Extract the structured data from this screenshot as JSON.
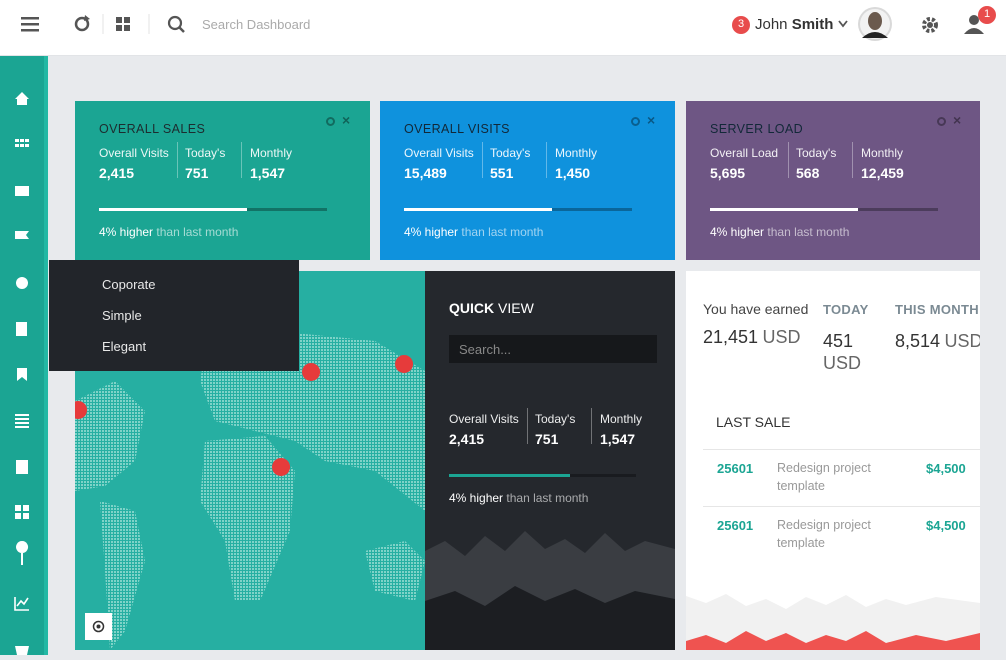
{
  "topbar": {
    "search_placeholder": "Search Dashboard",
    "messages_badge": 3,
    "user_first_name": "John",
    "user_last_name": "Smith",
    "alerts_badge": 1
  },
  "stat_cards": [
    {
      "title": "OVERALL SALES",
      "stats": [
        {
          "label": "Overall Visits",
          "value": "2,415"
        },
        {
          "label": "Today's",
          "value": "751"
        },
        {
          "label": "Monthly",
          "value": "1,547"
        }
      ],
      "progress_label": "4% higher",
      "progress_note": "than last month"
    },
    {
      "title": "OVERALL VISITS",
      "stats": [
        {
          "label": "Overall Visits",
          "value": "15,489"
        },
        {
          "label": "Today's",
          "value": "551"
        },
        {
          "label": "Monthly",
          "value": "1,450"
        }
      ],
      "progress_label": "4% higher",
      "progress_note": "than last month"
    },
    {
      "title": "SERVER LOAD",
      "stats": [
        {
          "label": "Overall Load",
          "value": "5,695"
        },
        {
          "label": "Today's",
          "value": "568"
        },
        {
          "label": "Monthly",
          "value": "12,459"
        }
      ],
      "progress_label": "4% higher",
      "progress_note": "than last month"
    }
  ],
  "menu": {
    "items": [
      "Coporate",
      "Simple",
      "Elegant"
    ]
  },
  "quick_view": {
    "title_bold": "QUICK",
    "title_rest": "VIEW",
    "search_placeholder": "Search...",
    "stats": [
      {
        "label": "Overall Visits",
        "value": "2,415"
      },
      {
        "label": "Today's",
        "value": "751"
      },
      {
        "label": "Monthly",
        "value": "1,547"
      }
    ],
    "progress_label": "4% higher",
    "progress_note": "than last month"
  },
  "earnings": {
    "label": "You have earned",
    "amount": "21,451",
    "unit": "USD",
    "today_label": "TODAY",
    "today_amount": "451",
    "today_unit": "USD",
    "month_label": "THIS MONTH",
    "month_amount": "8,514",
    "month_unit": "USD"
  },
  "last_sale": {
    "title": "LAST SALE",
    "rows": [
      {
        "id": "25601",
        "description": "Redesign project template",
        "amount": "$4,500"
      },
      {
        "id": "25601",
        "description": "Redesign project template",
        "amount": "$4,500"
      }
    ]
  }
}
